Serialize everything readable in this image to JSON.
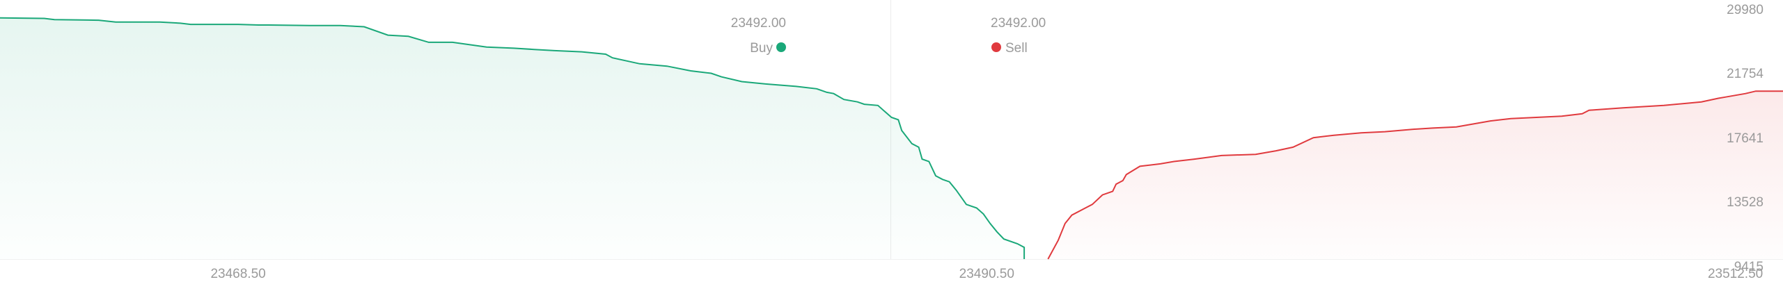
{
  "colors": {
    "buy": "#1aa879",
    "sell": "#e03a3e",
    "axis_text": "#9a9a9a",
    "divider": "#ececec"
  },
  "chart_data": {
    "type": "area",
    "title": "",
    "xlabel": "",
    "ylabel": "",
    "mid_price_labels": {
      "buy": "23492.00",
      "sell": "23492.00"
    },
    "legend": {
      "buy_label": "Buy",
      "sell_label": "Sell",
      "placement": "top-center"
    },
    "x_ticks": [
      "23468.50",
      "23490.50",
      "23512.50"
    ],
    "y_ticks": [
      "29980",
      "21754",
      "17641",
      "13528",
      "9415"
    ],
    "xlim": [
      23461.5,
      23513.9
    ],
    "ylim": [
      9415,
      29980
    ],
    "grid": false,
    "series": [
      {
        "name": "Buy",
        "x": [
          23461.5,
          23462.8,
          23463.1,
          23464.4,
          23464.9,
          23465.2,
          23466.2,
          23466.8,
          23467.1,
          23468.5,
          23469.1,
          23469.4,
          23470.6,
          23471.5,
          23472.2,
          23472.9,
          23473.5,
          23474.1,
          23474.6,
          23474.8,
          23475.8,
          23476.6,
          23477.2,
          23477.8,
          23478.6,
          23479.3,
          23479.5,
          23480.3,
          23481.1,
          23481.8,
          23482.4,
          23482.7,
          23483.3,
          23484.0,
          23484.9,
          23485.5,
          23485.8,
          23486.0,
          23486.3,
          23486.7,
          23486.9,
          23487.3,
          23487.5,
          23487.7,
          23487.9,
          23488.0,
          23488.3,
          23488.5,
          23488.6,
          23488.8,
          23489.0,
          23489.2,
          23489.4,
          23489.6,
          23489.9,
          23490.2,
          23490.4,
          23490.6,
          23490.8,
          23491.0,
          23491.4,
          23491.6,
          23491.6
        ],
        "y": [
          29650,
          29600,
          29500,
          29450,
          29300,
          29300,
          29300,
          29200,
          29100,
          29100,
          29050,
          29050,
          29000,
          29000,
          28900,
          28200,
          28100,
          27600,
          27600,
          27600,
          27200,
          27100,
          27000,
          26900,
          26800,
          26600,
          26300,
          25800,
          25600,
          25200,
          25000,
          24700,
          24300,
          24100,
          23900,
          23700,
          23400,
          23300,
          22800,
          22600,
          22400,
          22300,
          21800,
          21300,
          21100,
          20200,
          19100,
          18800,
          17800,
          17600,
          16400,
          16100,
          15900,
          15200,
          14000,
          13700,
          13200,
          12400,
          11700,
          11100,
          10700,
          10400,
          9415
        ]
      },
      {
        "name": "Sell",
        "x": [
          23492.3,
          23492.6,
          23492.8,
          23493.0,
          23493.4,
          23493.6,
          23493.9,
          23494.2,
          23494.3,
          23494.5,
          23494.6,
          23495.0,
          23495.6,
          23496.0,
          23496.6,
          23497.4,
          23498.4,
          23499.0,
          23499.5,
          23500.1,
          23500.7,
          23501.5,
          23502.2,
          23503.0,
          23503.6,
          23504.3,
          23505.3,
          23505.9,
          23507.4,
          23508.0,
          23508.2,
          23509.2,
          23510.4,
          23511.5,
          23512.0,
          23512.2,
          23512.8,
          23513.1,
          23513.9
        ],
        "y": [
          9415,
          11000,
          12400,
          13100,
          13700,
          14000,
          14800,
          15100,
          15700,
          16000,
          16500,
          17200,
          17400,
          17600,
          17800,
          18100,
          18200,
          18500,
          18800,
          19600,
          19800,
          20000,
          20100,
          20300,
          20400,
          20500,
          21000,
          21200,
          21400,
          21600,
          21900,
          22100,
          22300,
          22600,
          22900,
          23000,
          23300,
          23500,
          23500
        ]
      }
    ]
  }
}
